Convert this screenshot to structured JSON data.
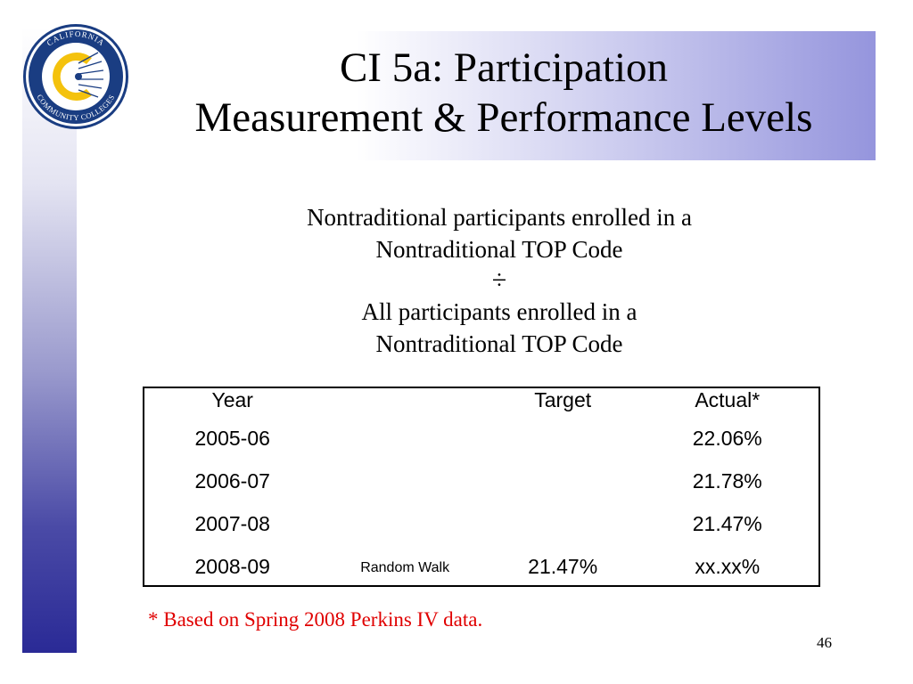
{
  "logo": {
    "text": "CALIFORNIA COMMUNITY COLLEGES",
    "colors": {
      "ring": "#1a3d82",
      "gold": "#f4c20d"
    }
  },
  "title": {
    "line1": "CI 5a: Participation",
    "line2": "Measurement & Performance Levels"
  },
  "formula": {
    "numerator_line1": "Nontraditional participants enrolled in a",
    "numerator_line2": "Nontraditional TOP Code",
    "operator": "÷",
    "denominator_line1": "All participants enrolled in a",
    "denominator_line2": "Nontraditional TOP Code"
  },
  "table": {
    "headers": {
      "year": "Year",
      "note": "",
      "target": "Target",
      "actual": "Actual*"
    },
    "rows": [
      {
        "year": "2005-06",
        "note": "",
        "target": "",
        "actual": "22.06%"
      },
      {
        "year": "2006-07",
        "note": "",
        "target": "",
        "actual": "21.78%"
      },
      {
        "year": "2007-08",
        "note": "",
        "target": "",
        "actual": "21.47%"
      },
      {
        "year": "2008-09",
        "note": "Random Walk",
        "target": "21.47%",
        "actual": "xx.xx%"
      }
    ]
  },
  "footnote": "* Based on Spring 2008 Perkins IV data.",
  "page_number": "46",
  "colors": {
    "footnote": "#e00000",
    "sidebar_dark": "#2a2a96",
    "title_band_right": "#9595dd"
  }
}
